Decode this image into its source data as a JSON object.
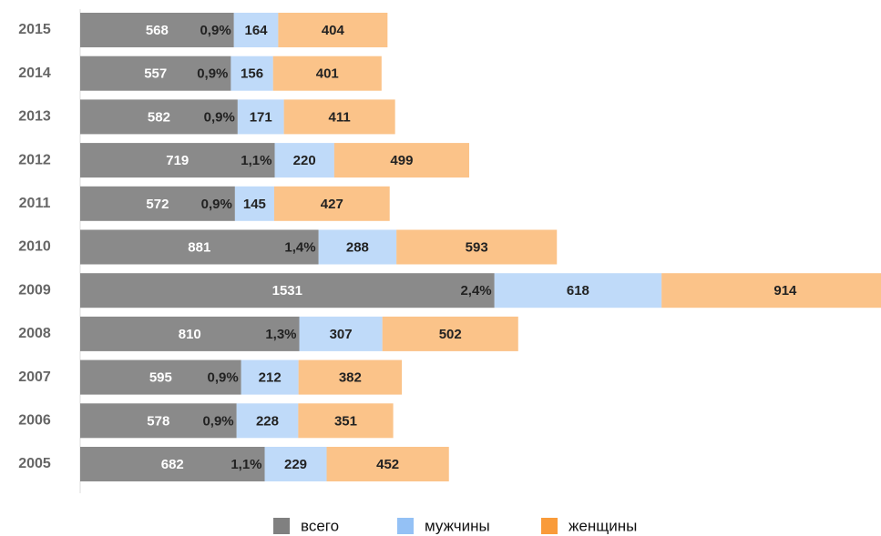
{
  "chart_data": {
    "type": "stacked_barh",
    "categories": [
      "2015",
      "2014",
      "2013",
      "2012",
      "2011",
      "2010",
      "2009",
      "2008",
      "2007",
      "2006",
      "2005"
    ],
    "series": [
      {
        "name": "всего",
        "color": "#808080",
        "values": [
          568,
          557,
          582,
          719,
          572,
          881,
          1531,
          810,
          595,
          578,
          682
        ]
      },
      {
        "name": "мужчины",
        "color": "#94c1f5",
        "values": [
          164,
          156,
          171,
          220,
          145,
          288,
          618,
          307,
          212,
          228,
          229
        ]
      },
      {
        "name": "женщины",
        "color": "#f99b3a",
        "values": [
          404,
          401,
          411,
          499,
          427,
          593,
          914,
          502,
          382,
          351,
          452
        ]
      }
    ],
    "share_labels": [
      "0,9%",
      "0,9%",
      "0,9%",
      "1,1%",
      "0,9%",
      "1,4%",
      "2,4%",
      "1,3%",
      "0,9%",
      "0,9%",
      "1,1%"
    ],
    "xlim": [
      0,
      2960
    ],
    "legend": "bottom"
  }
}
